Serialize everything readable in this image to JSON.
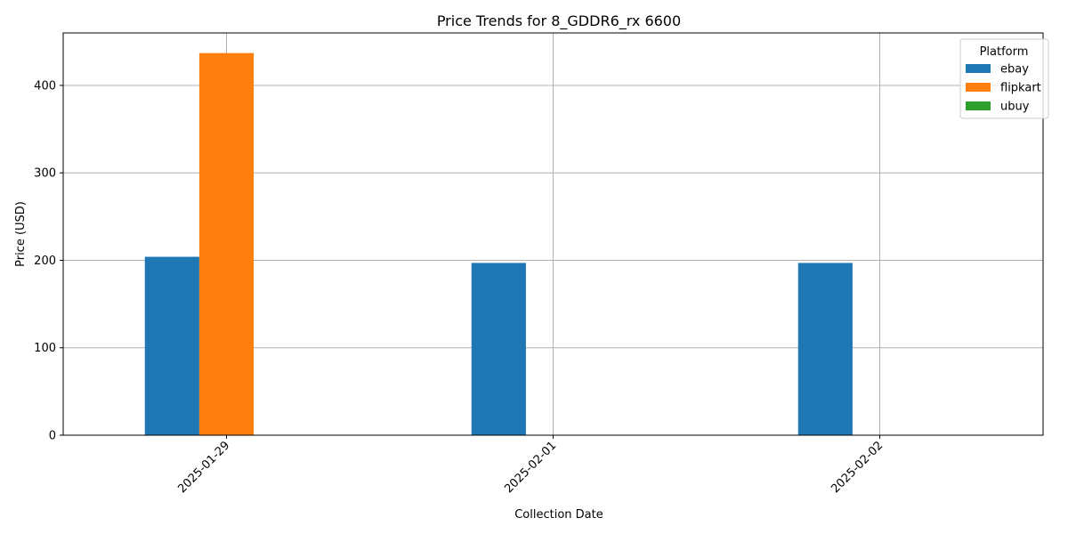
{
  "chart_data": {
    "type": "bar",
    "title": "Price Trends for 8_GDDR6_rx 6600",
    "xlabel": "Collection Date",
    "ylabel": "Price (USD)",
    "categories": [
      "2025-01-29",
      "2025-02-01",
      "2025-02-02"
    ],
    "series": [
      {
        "name": "ebay",
        "color": "#1f77b4",
        "values": [
          204,
          197,
          197
        ]
      },
      {
        "name": "flipkart",
        "color": "#ff7f0e",
        "values": [
          437,
          0,
          0
        ]
      },
      {
        "name": "ubuy",
        "color": "#2ca02c",
        "values": [
          0,
          0,
          0
        ]
      }
    ],
    "ylim": [
      0,
      460
    ],
    "yticks": [
      0,
      100,
      200,
      300,
      400
    ],
    "grid": true,
    "legend": {
      "title": "Platform",
      "placement": "top-right"
    }
  }
}
